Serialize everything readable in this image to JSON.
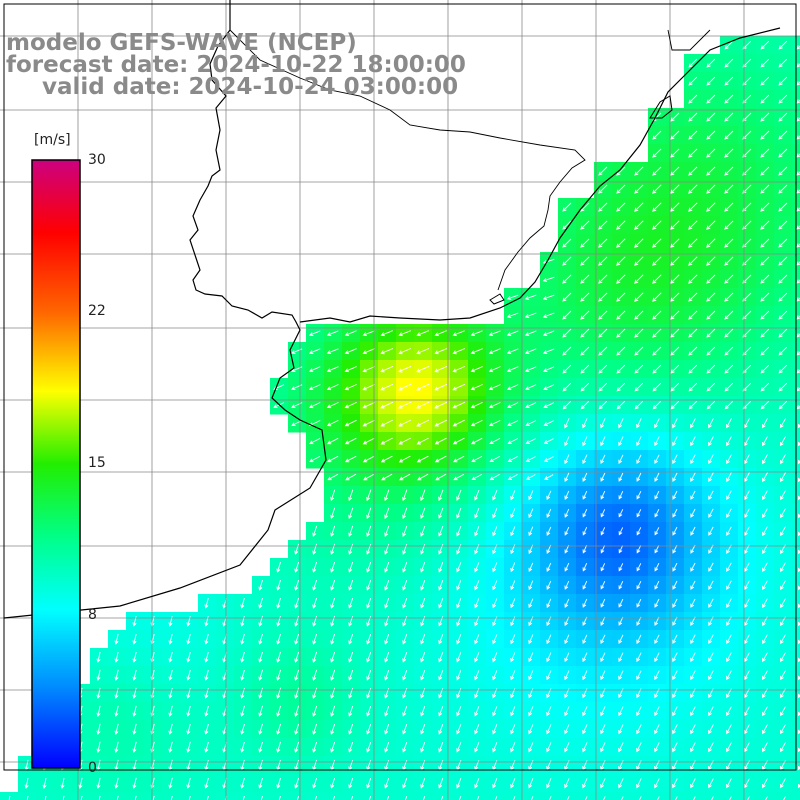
{
  "header": {
    "model": "modelo GEFS-WAVE (NCEP)",
    "forecast": "forecast date: 2024-10-22 18:00:00",
    "valid": "valid date: 2024-10-24 03:00:00"
  },
  "colorbar": {
    "unit": "[m/s]",
    "ticks": [
      "30",
      "22",
      "15",
      "8",
      "0"
    ],
    "range": [
      0,
      30
    ],
    "colors": [
      "#0000ff",
      "#00aaff",
      "#00ffff",
      "#00ff44",
      "#22ee00",
      "#ffff00",
      "#ff9900",
      "#ff0000",
      "#cc0066"
    ]
  },
  "map_style": {
    "land_color": "#ffffff",
    "coast_color": "#000000",
    "grid_color": "#888888",
    "arrow_color": "#ffffff",
    "arrow_direction": "southwest / south"
  }
}
